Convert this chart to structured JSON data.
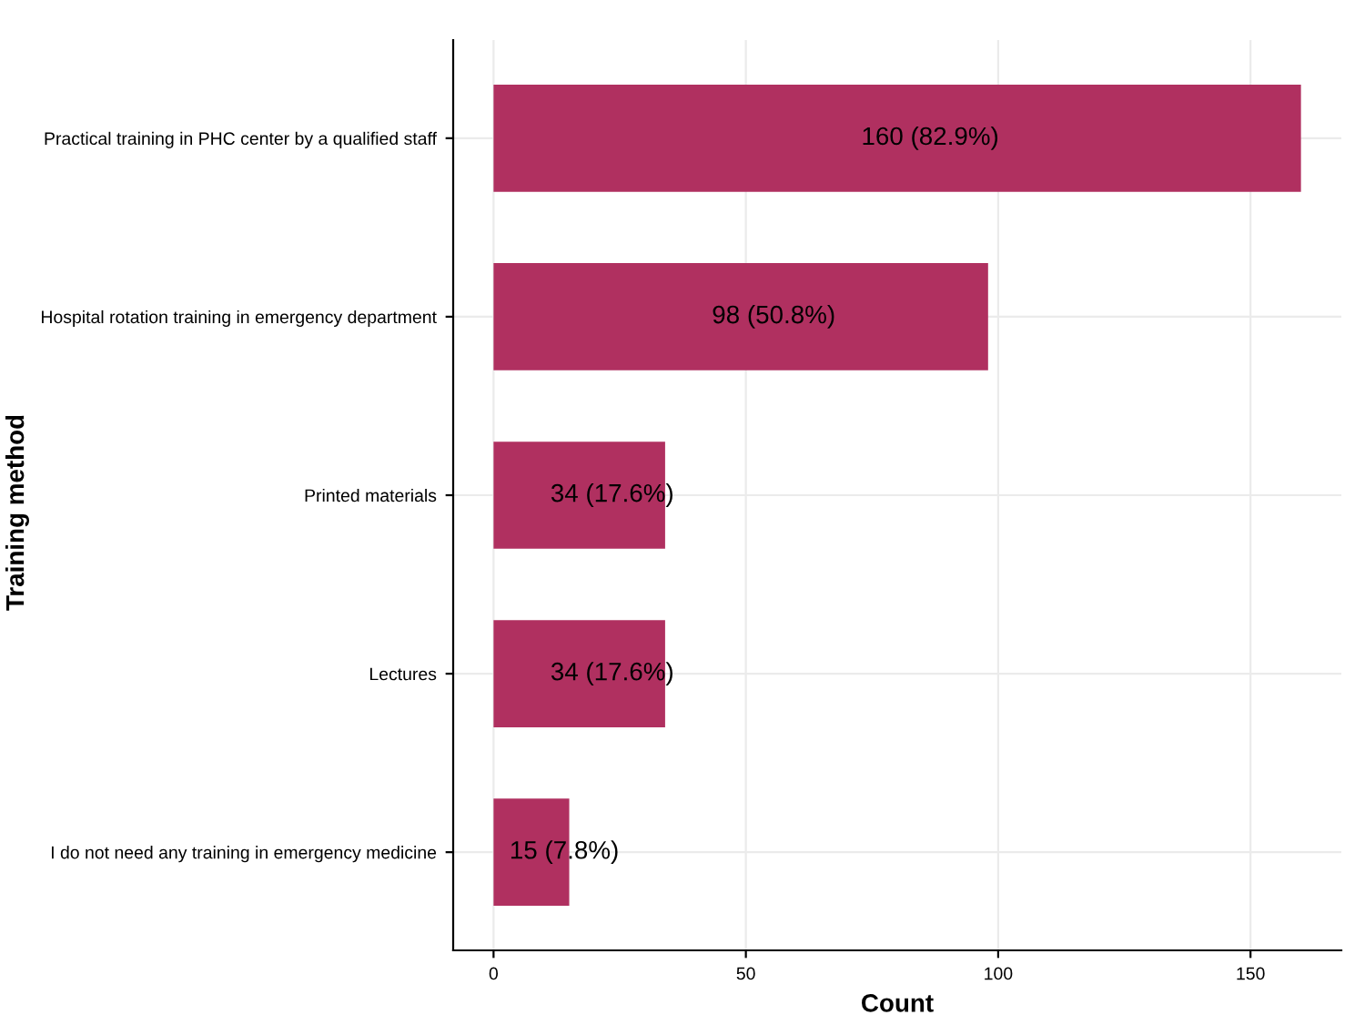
{
  "chart_data": {
    "type": "bar",
    "orientation": "horizontal",
    "xlabel": "Count",
    "ylabel": "Training method",
    "categories": [
      "Practical training in PHC center by a qualified staff",
      "Hospital rotation training in emergency department",
      "Printed materials",
      "Lectures",
      "I do not need any training in emergency medicine"
    ],
    "values": [
      160,
      98,
      34,
      34,
      15
    ],
    "value_labels": [
      "160 (82.9%)",
      "98 (50.8%)",
      "34 (17.6%)",
      "34 (17.6%)",
      "15 (7.8%)"
    ],
    "color": "#b03060",
    "xlim": [
      -8,
      168
    ],
    "xticks": [
      0,
      50,
      100,
      150
    ],
    "grid": true
  }
}
